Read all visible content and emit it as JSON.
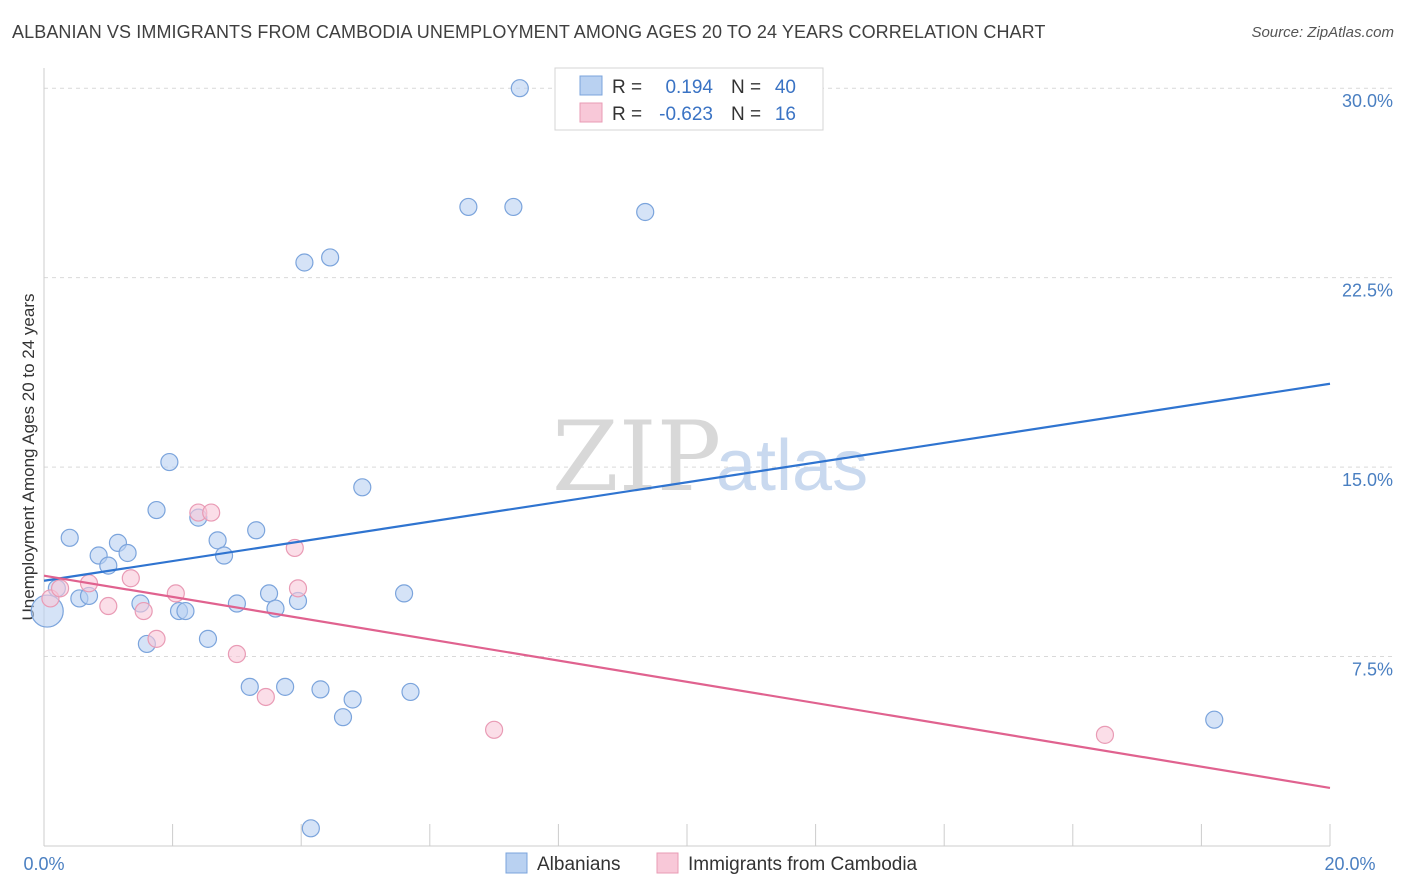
{
  "title": "ALBANIAN VS IMMIGRANTS FROM CAMBODIA UNEMPLOYMENT AMONG AGES 20 TO 24 YEARS CORRELATION CHART",
  "source": "Source: ZipAtlas.com",
  "watermark": {
    "zip": "ZIP",
    "atlas": "atlas"
  },
  "legend_box": {
    "rows": [
      {
        "r_label": "R =",
        "r_value": "0.194",
        "n_label": "N =",
        "n_value": "40"
      },
      {
        "r_label": "R =",
        "r_value": "-0.623",
        "n_label": "N =",
        "n_value": "16"
      }
    ]
  },
  "colors": {
    "blue_fill": "#b9d1f1",
    "blue_stroke": "#7ba4dc",
    "blue_line": "#2f74d0",
    "pink_fill": "#f8c8d8",
    "pink_stroke": "#e99bb5",
    "pink_line": "#e0628f",
    "grid": "#d9d9d9",
    "tick_label": "#4a7fc1"
  },
  "chart_data": {
    "type": "scatter",
    "title": "ALBANIAN VS IMMIGRANTS FROM CAMBODIA UNEMPLOYMENT AMONG AGES 20 TO 24 YEARS CORRELATION CHART",
    "xlabel": "",
    "ylabel": "Unemployment Among Ages 20 to 24 years",
    "xlim": [
      0,
      20
    ],
    "ylim": [
      0,
      30.8
    ],
    "x_tick_labels": [
      "0.0%",
      "20.0%"
    ],
    "y_ticks": [
      7.5,
      15.0,
      22.5,
      30.0
    ],
    "y_tick_labels": [
      "7.5%",
      "15.0%",
      "22.5%",
      "30.0%"
    ],
    "grid": true,
    "legend_position": "bottom-center",
    "series": [
      {
        "name": "Albanians",
        "color": "blue",
        "r": 0.194,
        "n": 40,
        "trend": {
          "x": [
            0,
            20
          ],
          "y": [
            10.5,
            18.3
          ]
        },
        "points": [
          {
            "x": 0.05,
            "y": 9.3,
            "big": true
          },
          {
            "x": 0.2,
            "y": 10.2
          },
          {
            "x": 0.4,
            "y": 12.2
          },
          {
            "x": 0.55,
            "y": 9.8
          },
          {
            "x": 0.7,
            "y": 9.9
          },
          {
            "x": 0.85,
            "y": 11.5
          },
          {
            "x": 1.0,
            "y": 11.1
          },
          {
            "x": 1.15,
            "y": 12.0
          },
          {
            "x": 1.3,
            "y": 11.6
          },
          {
            "x": 1.5,
            "y": 9.6
          },
          {
            "x": 1.6,
            "y": 8.0
          },
          {
            "x": 1.75,
            "y": 13.3
          },
          {
            "x": 1.95,
            "y": 15.2
          },
          {
            "x": 2.1,
            "y": 9.3
          },
          {
            "x": 2.2,
            "y": 9.3
          },
          {
            "x": 2.4,
            "y": 13.0
          },
          {
            "x": 2.55,
            "y": 8.2
          },
          {
            "x": 2.7,
            "y": 12.1
          },
          {
            "x": 2.8,
            "y": 11.5
          },
          {
            "x": 3.0,
            "y": 9.6
          },
          {
            "x": 3.2,
            "y": 6.3
          },
          {
            "x": 3.3,
            "y": 12.5
          },
          {
            "x": 3.5,
            "y": 10.0
          },
          {
            "x": 3.6,
            "y": 9.4
          },
          {
            "x": 3.75,
            "y": 6.3
          },
          {
            "x": 3.95,
            "y": 9.7
          },
          {
            "x": 4.05,
            "y": 23.1
          },
          {
            "x": 4.15,
            "y": 0.7
          },
          {
            "x": 4.3,
            "y": 6.2
          },
          {
            "x": 4.45,
            "y": 23.3
          },
          {
            "x": 4.65,
            "y": 5.1
          },
          {
            "x": 4.8,
            "y": 5.8
          },
          {
            "x": 4.95,
            "y": 14.2
          },
          {
            "x": 5.6,
            "y": 10.0
          },
          {
            "x": 5.7,
            "y": 6.1
          },
          {
            "x": 6.6,
            "y": 25.3
          },
          {
            "x": 7.3,
            "y": 25.3
          },
          {
            "x": 7.4,
            "y": 30.0
          },
          {
            "x": 9.35,
            "y": 25.1
          },
          {
            "x": 18.2,
            "y": 5.0
          }
        ]
      },
      {
        "name": "Immigrants from Cambodia",
        "color": "pink",
        "r": -0.623,
        "n": 16,
        "trend": {
          "x": [
            0,
            20
          ],
          "y": [
            10.7,
            2.3
          ]
        },
        "points": [
          {
            "x": 0.1,
            "y": 9.8
          },
          {
            "x": 0.25,
            "y": 10.2
          },
          {
            "x": 0.7,
            "y": 10.4
          },
          {
            "x": 1.0,
            "y": 9.5
          },
          {
            "x": 1.35,
            "y": 10.6
          },
          {
            "x": 1.55,
            "y": 9.3
          },
          {
            "x": 1.75,
            "y": 8.2
          },
          {
            "x": 2.05,
            "y": 10.0
          },
          {
            "x": 2.4,
            "y": 13.2
          },
          {
            "x": 2.6,
            "y": 13.2
          },
          {
            "x": 3.0,
            "y": 7.6
          },
          {
            "x": 3.45,
            "y": 5.9
          },
          {
            "x": 3.9,
            "y": 11.8
          },
          {
            "x": 3.95,
            "y": 10.2
          },
          {
            "x": 7.0,
            "y": 4.6
          },
          {
            "x": 16.5,
            "y": 4.4
          }
        ]
      }
    ]
  }
}
